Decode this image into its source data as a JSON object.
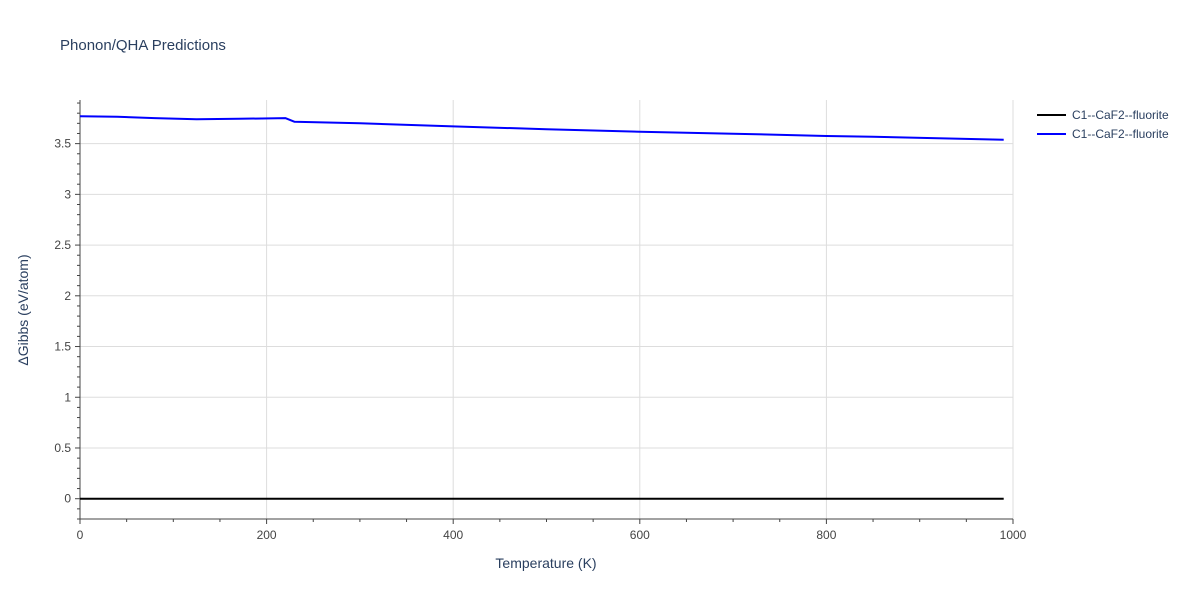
{
  "chart_data": {
    "type": "line",
    "title": "Phonon/QHA Predictions",
    "xlabel": "Temperature (K)",
    "ylabel": "ΔGibbs (eV/atom)",
    "xlim": [
      0,
      1000
    ],
    "ylim": [
      -0.2,
      3.93
    ],
    "x_ticks": [
      0,
      200,
      400,
      600,
      800,
      1000
    ],
    "y_ticks": [
      0,
      0.5,
      1,
      1.5,
      2,
      2.5,
      3,
      3.5
    ],
    "x_tick_labels": [
      "0",
      "200",
      "400",
      "600",
      "800",
      "1000"
    ],
    "y_tick_labels": [
      "0",
      "0.5",
      "1",
      "1.5",
      "2",
      "2.5",
      "3",
      "3.5"
    ],
    "grid": true,
    "legend_position": "top-right",
    "series": [
      {
        "name": "C1--CaF2--fluorite",
        "color": "#000000",
        "x": [
          0,
          990
        ],
        "y": [
          0,
          0
        ]
      },
      {
        "name": "C1--CaF2--fluorite",
        "color": "#0000ff",
        "x": [
          0,
          40,
          80,
          125,
          170,
          220,
          230,
          300,
          400,
          500,
          600,
          700,
          800,
          850,
          990
        ],
        "y": [
          3.77,
          3.765,
          3.752,
          3.74,
          3.745,
          3.752,
          3.715,
          3.7,
          3.67,
          3.642,
          3.618,
          3.598,
          3.575,
          3.568,
          3.538
        ]
      }
    ]
  }
}
